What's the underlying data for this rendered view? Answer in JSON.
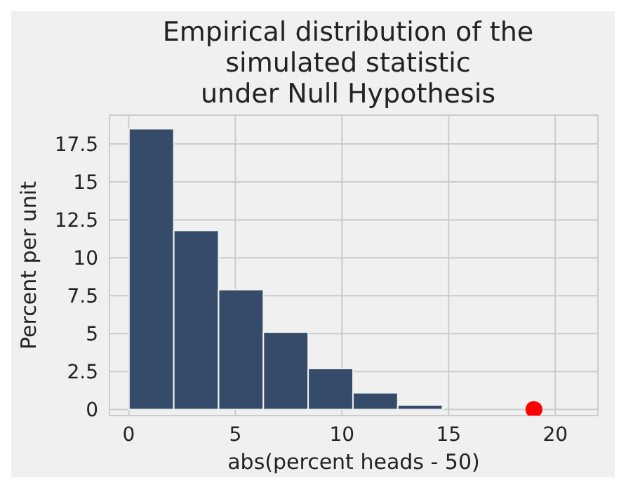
{
  "chart_data": {
    "type": "histogram",
    "title": "Empirical distribution of the\nsimulated statistic\nunder Null Hypothesis",
    "xlabel": "abs(percent heads - 50)",
    "ylabel": "Percent per unit",
    "bins": [
      0,
      2.1,
      4.2,
      6.3,
      8.4,
      10.5,
      12.6,
      14.7
    ],
    "values": [
      18.5,
      11.8,
      7.9,
      5.1,
      2.7,
      1.1,
      0.3
    ],
    "color": "#364b6a",
    "series": [
      {
        "type": "scatter",
        "x": [
          19
        ],
        "values": [
          0
        ],
        "color": "#ff0000"
      }
    ],
    "xlim": [
      -0.9,
      22
    ],
    "xticks": [
      0,
      5,
      10,
      15,
      20
    ],
    "ylim": [
      -0.4,
      19.4
    ],
    "yticks": [
      0,
      2.5,
      5,
      7.5,
      10,
      12.5,
      15,
      17.5
    ],
    "grid": true,
    "marker": "circle"
  }
}
